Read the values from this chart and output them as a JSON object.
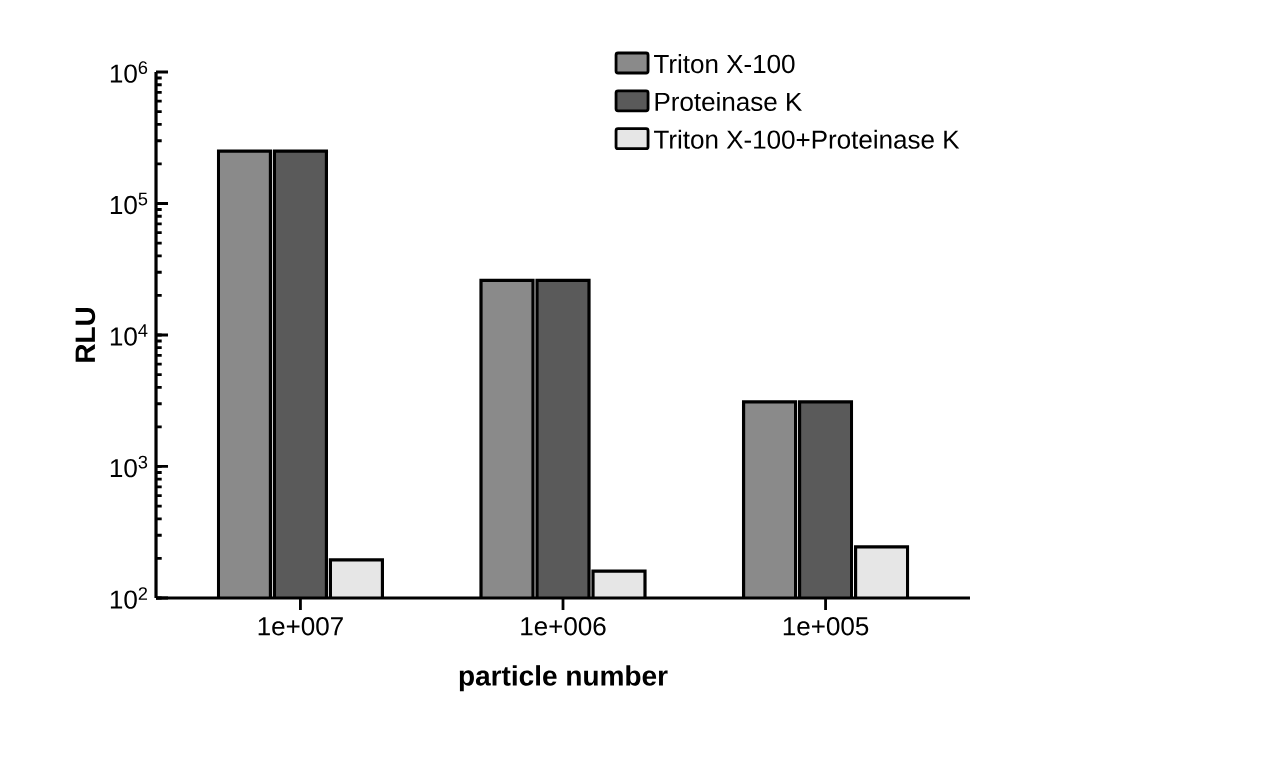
{
  "chart_data": {
    "type": "bar",
    "xlabel": "particle number",
    "ylabel": "RLU",
    "categories": [
      "1e+007",
      "1e+006",
      "1e+005"
    ],
    "series": [
      {
        "name": "Triton X-100",
        "color": "#8a8a8a",
        "values": [
          250000,
          26000,
          3100
        ]
      },
      {
        "name": "Proteinase K",
        "color": "#5a5a5a",
        "values": [
          250000,
          26000,
          3100
        ]
      },
      {
        "name": "Triton X-100+Proteinase K",
        "color": "#e6e6e6",
        "values": [
          195,
          160,
          245
        ]
      }
    ],
    "log": "y",
    "ylim": [
      100,
      1000000
    ],
    "yticks": [
      {
        "value": 100,
        "label": "10$^{2}$"
      },
      {
        "value": 1000,
        "label": "10$^{3}$"
      },
      {
        "value": 10000,
        "label": "10$^{4}$"
      },
      {
        "value": 100000,
        "label": "10$^{5}$"
      },
      {
        "value": 1000000,
        "label": "10$^{6}$"
      }
    ],
    "legend": "top right",
    "grid": false
  }
}
